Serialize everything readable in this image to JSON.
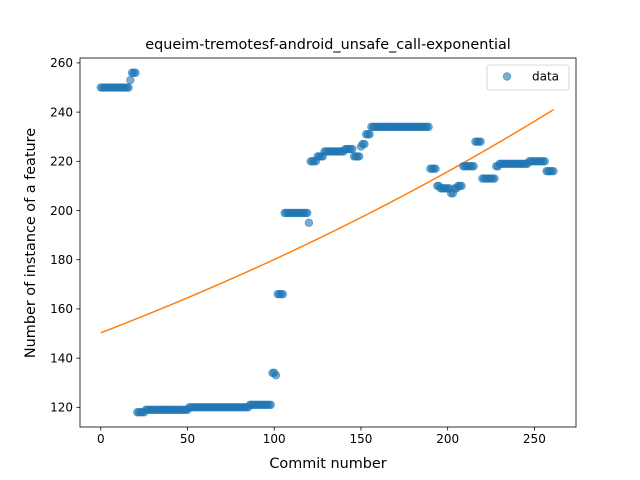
{
  "chart_data": {
    "type": "scatter",
    "title": "equeim-tremotesf-android_unsafe_call-exponential",
    "xlabel": "Commit number",
    "ylabel": "Number of instance of a feature",
    "xlim": [
      -12,
      274
    ],
    "ylim": [
      112,
      262
    ],
    "xticks": [
      0,
      50,
      100,
      150,
      200,
      250
    ],
    "yticks": [
      120,
      140,
      160,
      180,
      200,
      220,
      240,
      260
    ],
    "grid": false,
    "legend": {
      "position": "top-right",
      "entries": [
        "data"
      ]
    },
    "colors": {
      "data": "#1f77b4",
      "fit": "#ff7f0e"
    },
    "series": [
      {
        "name": "data",
        "type": "scatter",
        "segments": [
          {
            "x_start": 0,
            "x_end": 16,
            "y": 250
          },
          {
            "x_start": 17,
            "x_end": 17,
            "y": 253
          },
          {
            "x_start": 18,
            "x_end": 20,
            "y": 256
          },
          {
            "x_start": 21,
            "x_end": 25,
            "y": 118
          },
          {
            "x_start": 26,
            "x_end": 50,
            "y": 119
          },
          {
            "x_start": 51,
            "x_end": 85,
            "y": 120
          },
          {
            "x_start": 86,
            "x_end": 98,
            "y": 121
          },
          {
            "x_start": 99,
            "x_end": 100,
            "y": 134
          },
          {
            "x_start": 101,
            "x_end": 101,
            "y": 133
          },
          {
            "x_start": 102,
            "x_end": 105,
            "y": 166
          },
          {
            "x_start": 106,
            "x_end": 119,
            "y": 199
          },
          {
            "x_start": 120,
            "x_end": 120,
            "y": 195
          },
          {
            "x_start": 121,
            "x_end": 124,
            "y": 220
          },
          {
            "x_start": 125,
            "x_end": 128,
            "y": 222
          },
          {
            "x_start": 129,
            "x_end": 140,
            "y": 224
          },
          {
            "x_start": 141,
            "x_end": 145,
            "y": 225
          },
          {
            "x_start": 146,
            "x_end": 149,
            "y": 222
          },
          {
            "x_start": 150,
            "x_end": 150,
            "y": 226
          },
          {
            "x_start": 151,
            "x_end": 152,
            "y": 227
          },
          {
            "x_start": 153,
            "x_end": 155,
            "y": 231
          },
          {
            "x_start": 156,
            "x_end": 189,
            "y": 234
          },
          {
            "x_start": 190,
            "x_end": 193,
            "y": 217
          },
          {
            "x_start": 194,
            "x_end": 195,
            "y": 210
          },
          {
            "x_start": 196,
            "x_end": 201,
            "y": 209
          },
          {
            "x_start": 202,
            "x_end": 203,
            "y": 207
          },
          {
            "x_start": 204,
            "x_end": 205,
            "y": 209
          },
          {
            "x_start": 206,
            "x_end": 208,
            "y": 210
          },
          {
            "x_start": 209,
            "x_end": 215,
            "y": 218
          },
          {
            "x_start": 216,
            "x_end": 219,
            "y": 228
          },
          {
            "x_start": 220,
            "x_end": 227,
            "y": 213
          },
          {
            "x_start": 228,
            "x_end": 229,
            "y": 218
          },
          {
            "x_start": 230,
            "x_end": 246,
            "y": 219
          },
          {
            "x_start": 247,
            "x_end": 256,
            "y": 220
          },
          {
            "x_start": 257,
            "x_end": 261,
            "y": 216
          }
        ]
      },
      {
        "name": "",
        "type": "line",
        "model": "exponential",
        "x_range": [
          0,
          261
        ],
        "y_start": 150.3,
        "y_end": 241.0
      }
    ]
  }
}
